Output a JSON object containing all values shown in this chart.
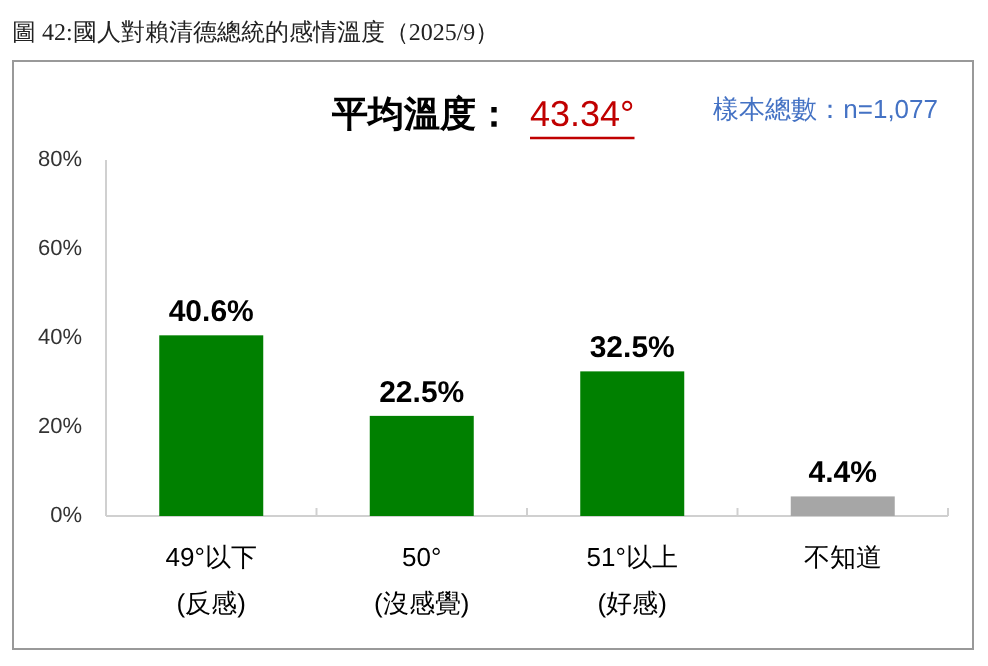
{
  "chart_data": {
    "type": "bar",
    "title": "圖 42:國人對賴清德總統的感情溫度（2025/9）",
    "annotations": [
      "平均溫度：",
      "43.34°",
      "樣本總數：n=1,077"
    ],
    "categories": [
      "49°以下\n(反感)",
      "50°\n(沒感覺)",
      "51°以上\n(好感)",
      "不知道"
    ],
    "values": [
      40.6,
      22.5,
      32.5,
      4.4
    ],
    "colors": [
      "#008000",
      "#008000",
      "#008000",
      "#a6a6a6"
    ],
    "value_labels": [
      "40.6%",
      "22.5%",
      "32.5%",
      "4.4%"
    ],
    "ylim": [
      0,
      80
    ],
    "yticks": [
      {
        "value": 0,
        "label": "0%"
      },
      {
        "value": 20,
        "label": "20%"
      },
      {
        "value": 40,
        "label": "40%"
      },
      {
        "value": 60,
        "label": "60%"
      },
      {
        "value": 80,
        "label": "80%"
      }
    ],
    "grid": false
  }
}
